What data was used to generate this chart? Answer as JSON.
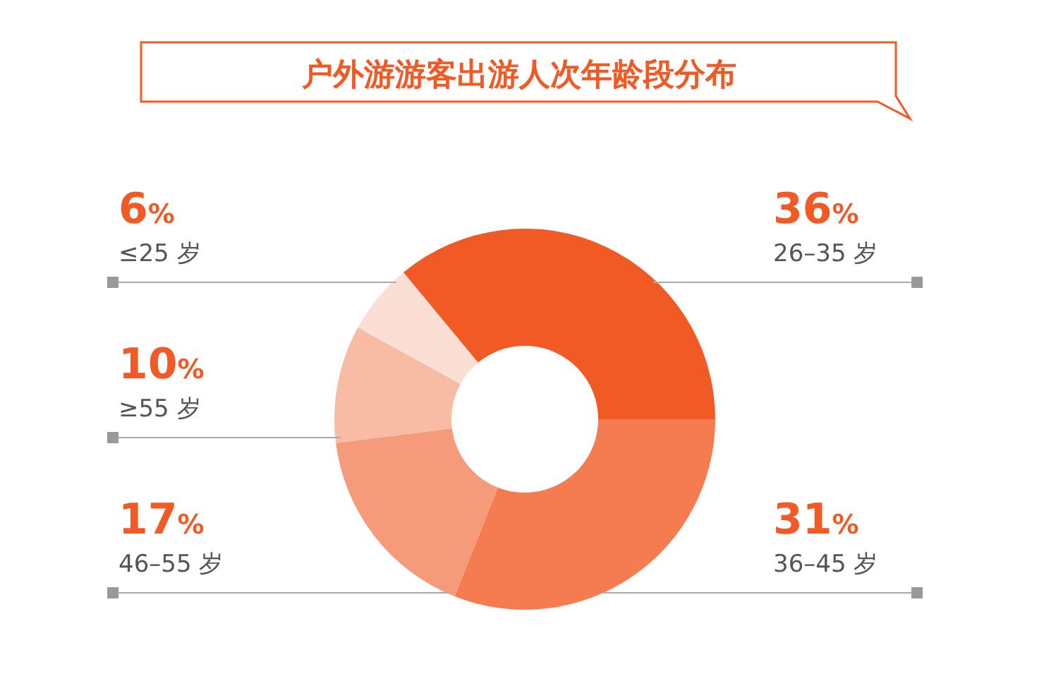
{
  "chart_data": {
    "type": "donut",
    "title": "户外游游客出游人次年龄段分布",
    "categories": [
      "26–35 岁",
      "36–45 岁",
      "46–55 岁",
      "≥55 岁",
      "≤25 岁"
    ],
    "values": [
      36,
      31,
      17,
      10,
      6
    ],
    "value_labels": [
      "36%",
      "31%",
      "17%",
      "10%",
      "6%"
    ],
    "colors": [
      "#f15a24",
      "#f47c50",
      "#f59b7a",
      "#f8bca4",
      "#fcdfd4"
    ],
    "legend": false
  }
}
